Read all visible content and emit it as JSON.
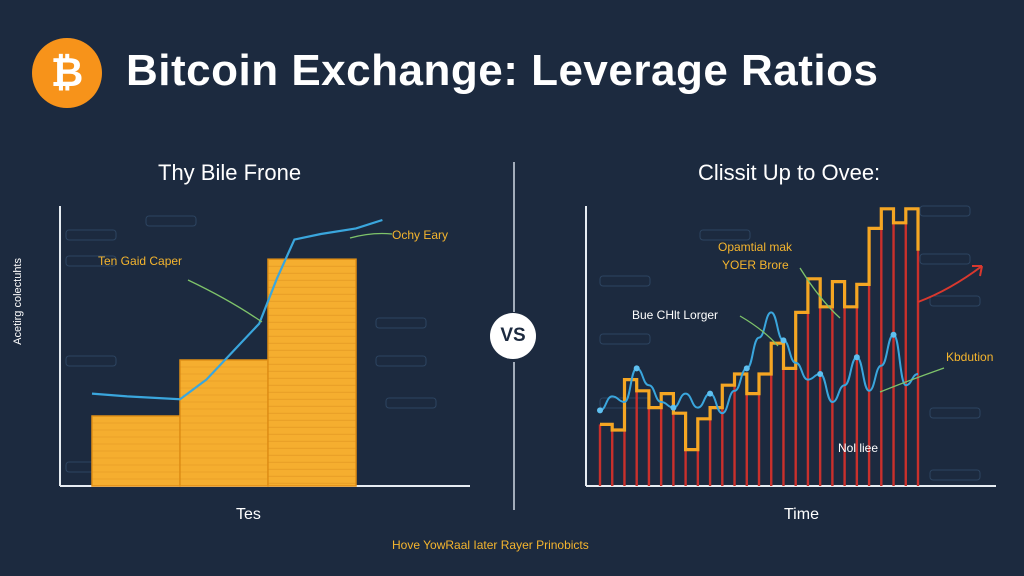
{
  "header": {
    "logo_symbol": "₿",
    "logo_color": "#f7931a",
    "title": "Bitcoin Exchange: Leverage Ratios"
  },
  "left_panel": {
    "title": "Thy Bile Frone",
    "ylabel": "Acetirg colectuhts",
    "xlabel": "Tes",
    "annotations": [
      "Ten Gaid Caper",
      "Ochy Eary"
    ]
  },
  "divider": {
    "badge": "VS"
  },
  "right_panel": {
    "title": "Clissit Up to Ovee:",
    "xlabel": "Time",
    "annotations": [
      "Opamtial mak",
      "YOER Brore",
      "Bue CHlt Lorger",
      "Kbdution",
      "Nol liee"
    ]
  },
  "footer": {
    "caption": "Hove YowRaal Iater Rayer Prinobicts"
  },
  "colors": {
    "background": "#1c2a3f",
    "bar": "#f5ae2f",
    "line_blue": "#3aa6dd",
    "candle_red": "#c9302c",
    "arrow_red": "#d9382e",
    "annotation": "#f5b52e"
  },
  "chart_data": [
    {
      "type": "bar",
      "title": "Thy Bile Frone",
      "xlabel": "Tes",
      "ylabel": "Acetirg colectuhts",
      "categories": [
        "",
        "",
        ""
      ],
      "values": [
        25,
        45,
        81
      ],
      "ylim": [
        0,
        100
      ],
      "overlay_line": {
        "x": [
          0.0,
          0.4,
          1.0,
          1.3,
          1.6,
          1.9,
          2.1,
          2.3,
          2.6,
          3.0,
          3.3
        ],
        "y": [
          33,
          32,
          31,
          38,
          48,
          58,
          74,
          88,
          90,
          92,
          95
        ]
      },
      "grid": false
    },
    {
      "type": "line",
      "title": "Clissit Up to Ovee:",
      "xlabel": "Time",
      "ylabel": "",
      "x": [
        0,
        1,
        2,
        3,
        4,
        5,
        6,
        7,
        8,
        9,
        10,
        11,
        12,
        13,
        14,
        15,
        16,
        17,
        18,
        19,
        20,
        21,
        22,
        23,
        24,
        25,
        26
      ],
      "series": [
        {
          "values": [
            22,
            20,
            38,
            34,
            28,
            33,
            26,
            13,
            24,
            28,
            36,
            40,
            33,
            40,
            51,
            42,
            62,
            74,
            64,
            73,
            64,
            72,
            92,
            99,
            94,
            99,
            84
          ]
        },
        {
          "values": [
            27,
            32,
            30,
            42,
            36,
            30,
            28,
            33,
            28,
            33,
            26,
            34,
            42,
            53,
            62,
            52,
            44,
            38,
            40,
            30,
            36,
            46,
            34,
            43,
            54,
            36,
            40
          ]
        }
      ],
      "ylim": [
        0,
        100
      ],
      "grid": false
    }
  ]
}
